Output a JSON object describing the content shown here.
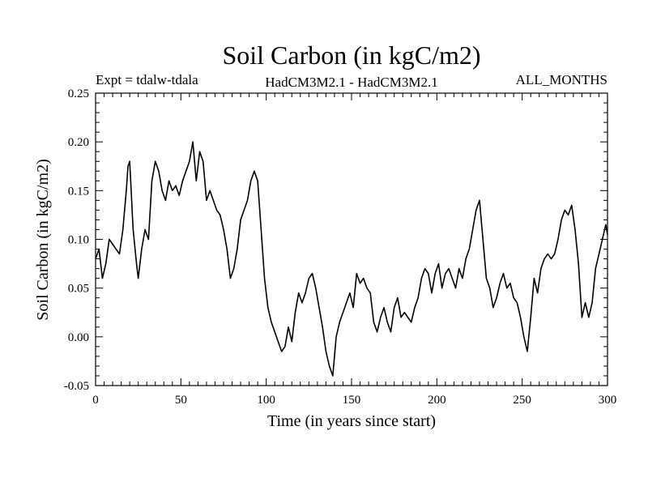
{
  "chart_data": {
    "type": "line",
    "title": "Soil Carbon (in kgC/m2)",
    "subtitle_left": "Expt = tdalw-tdala",
    "subtitle_center": "HadCM3M2.1 - HadCM3M2.1",
    "subtitle_right": "ALL_MONTHS",
    "xlabel": "Time (in years since start)",
    "ylabel": "Soil Carbon (in kgC/m2)",
    "xlim": [
      0,
      300
    ],
    "ylim": [
      -0.05,
      0.25
    ],
    "xticks": [
      0,
      50,
      100,
      150,
      200,
      250,
      300
    ],
    "xtick_labels": [
      "0",
      "50",
      "100",
      "150",
      "200",
      "250",
      "300"
    ],
    "yticks": [
      -0.05,
      0.0,
      0.05,
      0.1,
      0.15,
      0.2,
      0.25
    ],
    "ytick_labels": [
      "-0.05",
      "0.00",
      "0.05",
      "0.10",
      "0.15",
      "0.20",
      "0.25"
    ],
    "grid": false,
    "line_color": "#000000",
    "series": [
      {
        "x": [
          0,
          2,
          4,
          6,
          8,
          10,
          12,
          14,
          16,
          18,
          19,
          20,
          22,
          24,
          25,
          27,
          29,
          31,
          33,
          35,
          37,
          39,
          41,
          43,
          45,
          47,
          49,
          51,
          53,
          55,
          57,
          59,
          61,
          63,
          65,
          67,
          69,
          71,
          73,
          75,
          77,
          79,
          81,
          83,
          85,
          87,
          89,
          91,
          93,
          95,
          97,
          99,
          101,
          103,
          105,
          107,
          109,
          111,
          113,
          115,
          117,
          119,
          121,
          123,
          125,
          127,
          129,
          131,
          133,
          135,
          137,
          139,
          141,
          143,
          145,
          147,
          149,
          151,
          153,
          155,
          157,
          159,
          161,
          163,
          165,
          167,
          169,
          171,
          173,
          175,
          177,
          179,
          181,
          183,
          185,
          187,
          189,
          191,
          193,
          195,
          197,
          199,
          201,
          203,
          205,
          207,
          209,
          211,
          213,
          215,
          217,
          219,
          221,
          223,
          225,
          227,
          229,
          231,
          233,
          235,
          237,
          239,
          241,
          243,
          245,
          247,
          249,
          251,
          253,
          255,
          257,
          259,
          261,
          263,
          265,
          267,
          269,
          271,
          273,
          275,
          277,
          279,
          281,
          283,
          285,
          287,
          289,
          291,
          293,
          295,
          297,
          299,
          300
        ],
        "y": [
          0.08,
          0.09,
          0.06,
          0.075,
          0.1,
          0.095,
          0.09,
          0.085,
          0.11,
          0.15,
          0.175,
          0.18,
          0.11,
          0.075,
          0.06,
          0.09,
          0.11,
          0.1,
          0.16,
          0.18,
          0.17,
          0.15,
          0.14,
          0.16,
          0.15,
          0.155,
          0.145,
          0.16,
          0.17,
          0.18,
          0.2,
          0.16,
          0.19,
          0.18,
          0.14,
          0.15,
          0.14,
          0.13,
          0.125,
          0.11,
          0.09,
          0.06,
          0.07,
          0.09,
          0.12,
          0.13,
          0.14,
          0.16,
          0.17,
          0.16,
          0.11,
          0.06,
          0.03,
          0.015,
          0.005,
          -0.005,
          -0.015,
          -0.01,
          0.01,
          -0.005,
          0.025,
          0.045,
          0.035,
          0.045,
          0.06,
          0.065,
          0.05,
          0.03,
          0.01,
          -0.015,
          -0.03,
          -0.04,
          0.0,
          0.015,
          0.025,
          0.035,
          0.045,
          0.03,
          0.065,
          0.055,
          0.06,
          0.05,
          0.045,
          0.015,
          0.005,
          0.02,
          0.03,
          0.015,
          0.005,
          0.03,
          0.04,
          0.02,
          0.025,
          0.02,
          0.015,
          0.03,
          0.04,
          0.06,
          0.07,
          0.065,
          0.045,
          0.065,
          0.075,
          0.05,
          0.065,
          0.07,
          0.06,
          0.05,
          0.07,
          0.06,
          0.08,
          0.09,
          0.11,
          0.13,
          0.14,
          0.1,
          0.06,
          0.05,
          0.03,
          0.04,
          0.055,
          0.065,
          0.05,
          0.055,
          0.04,
          0.035,
          0.02,
          0.0,
          -0.015,
          0.02,
          0.06,
          0.045,
          0.07,
          0.08,
          0.085,
          0.08,
          0.085,
          0.1,
          0.12,
          0.13,
          0.125,
          0.135,
          0.11,
          0.075,
          0.02,
          0.035,
          0.02,
          0.035,
          0.07,
          0.085,
          0.1,
          0.115,
          0.105
        ]
      }
    ]
  }
}
